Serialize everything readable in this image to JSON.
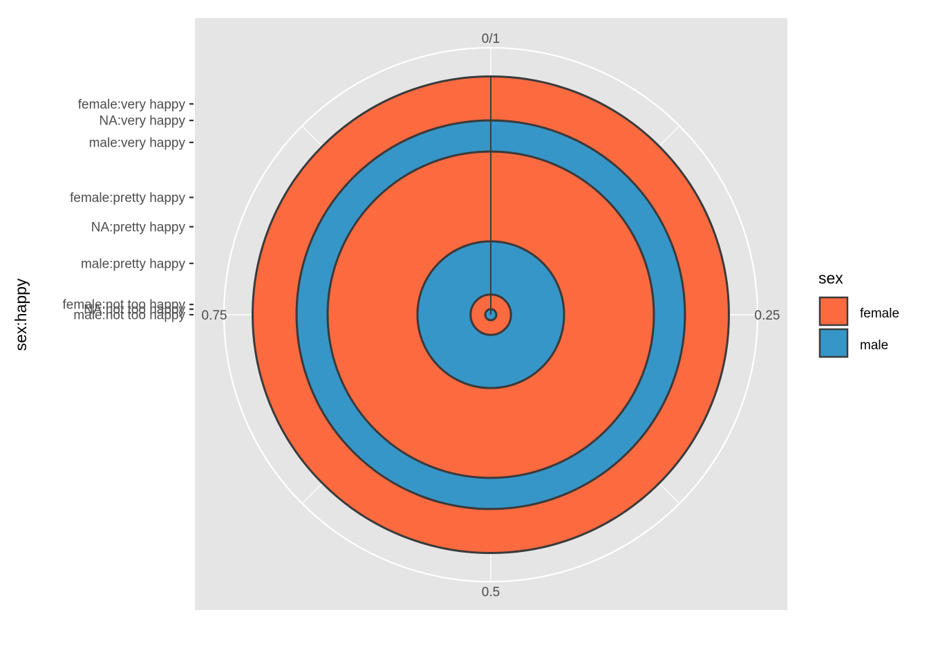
{
  "chart_data": {
    "type": "bar",
    "coord": "polar",
    "ylabel": "sex:happy",
    "theta_ticks": [
      {
        "value": 0,
        "label": "0/1"
      },
      {
        "value": 0.25,
        "label": "0.25"
      },
      {
        "value": 0.5,
        "label": "0.5"
      },
      {
        "value": 0.75,
        "label": "0.75"
      }
    ],
    "categories": [
      "male:not too happy",
      "NA:not too happy",
      "female:not too happy",
      "male:pretty happy",
      "NA:pretty happy",
      "female:pretty happy",
      "male:very happy",
      "NA:very happy",
      "female:very happy"
    ],
    "radii": [
      0,
      0.15,
      0.28,
      1.4,
      2.4,
      3.2,
      4.7,
      5.3,
      5.75
    ],
    "rings": [
      {
        "sex": "female",
        "inner": 5.3,
        "outer": 6.5,
        "value": 1
      },
      {
        "sex": "male",
        "inner": 4.45,
        "outer": 5.3,
        "value": 1
      },
      {
        "sex": "female",
        "inner": 2.0,
        "outer": 4.45,
        "value": 1
      },
      {
        "sex": "male",
        "inner": 0.55,
        "outer": 2.0,
        "value": 1
      },
      {
        "sex": "female",
        "inner": 0.15,
        "outer": 0.55,
        "value": 1
      },
      {
        "sex": "male",
        "inner": 0,
        "outer": 0.15,
        "value": 1
      }
    ],
    "legend": {
      "title": "sex",
      "position": "right",
      "items": [
        {
          "label": "female",
          "color": "#fc6a40"
        },
        {
          "label": "male",
          "color": "#3796c8"
        }
      ]
    },
    "colors": {
      "panel_bg": "#e5e5e5",
      "grid": "#ffffff",
      "outline": "#3b3b3b"
    },
    "grid": true
  }
}
